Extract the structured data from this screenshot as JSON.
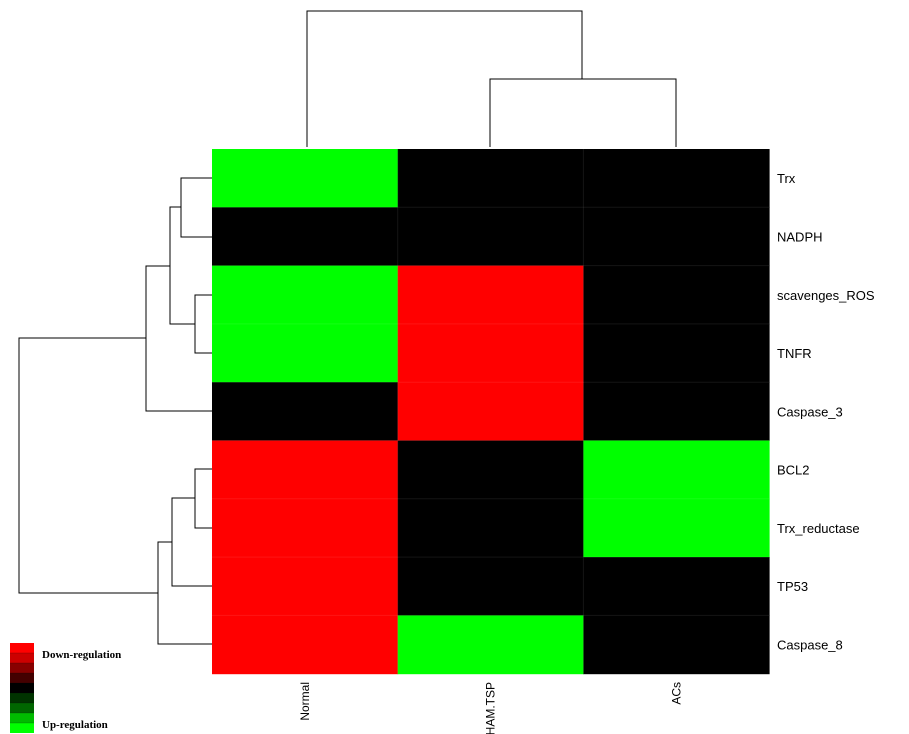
{
  "chart_data": {
    "type": "heatmap",
    "columns": [
      "Normal",
      "HAM.TSP",
      "ACs"
    ],
    "rows": [
      "Trx",
      "NADPH",
      "scavenges_ROS",
      "TNFR",
      "Caspase_3",
      "BCL2",
      "Trx_reductase",
      "TP53",
      "Caspase_8"
    ],
    "values": [
      [
        1,
        0,
        0
      ],
      [
        0,
        0,
        0
      ],
      [
        1,
        -1,
        0
      ],
      [
        1,
        -1,
        0
      ],
      [
        0,
        -1,
        0
      ],
      [
        -1,
        0,
        1
      ],
      [
        -1,
        0,
        1
      ],
      [
        -1,
        0,
        0
      ],
      [
        -1,
        1,
        0
      ]
    ],
    "value_scale": {
      "-1": "Down-regulation",
      "0": "no change",
      "1": "Up-regulation"
    },
    "colors": {
      "down": "#ff0000",
      "neutral": "#000000",
      "up": "#00ff00"
    },
    "legend": {
      "position": "bottom-left",
      "down_label": "Down-regulation",
      "up_label": "Up-regulation",
      "swatches": [
        "#ff0000",
        "#cc0000",
        "#880000",
        "#440000",
        "#000000",
        "#003300",
        "#006600",
        "#00bb00",
        "#00ff00"
      ]
    },
    "row_dendrogram": true,
    "column_dendrogram": true
  }
}
